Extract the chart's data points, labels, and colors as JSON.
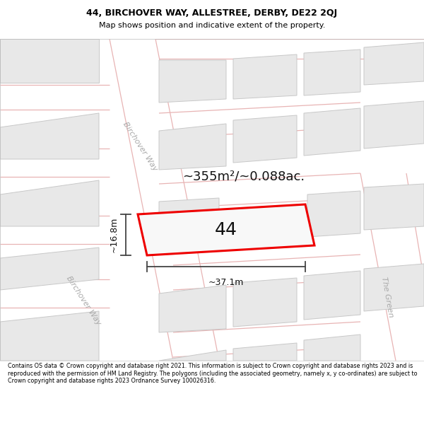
{
  "title_line1": "44, BIRCHOVER WAY, ALLESTREE, DERBY, DE22 2QJ",
  "title_line2": "Map shows position and indicative extent of the property.",
  "footer_text": "Contains OS data © Crown copyright and database right 2021. This information is subject to Crown copyright and database rights 2023 and is reproduced with the permission of HM Land Registry. The polygons (including the associated geometry, namely x, y co-ordinates) are subject to Crown copyright and database rights 2023 Ordnance Survey 100026316.",
  "map_bg": "#f9f6f4",
  "title_bg": "#ffffff",
  "road_color": "#e8b4b4",
  "road_lw": 0.9,
  "building_fill": "#e8e8e8",
  "building_edge": "#c8c8c8",
  "building_lw": 0.7,
  "highlight_color": "#ee0000",
  "highlight_lw": 2.2,
  "measure_color": "#444444",
  "area_text": "~355m²/~0.088ac.",
  "label_44": "44",
  "label_width": "~37.1m",
  "label_height": "~16.8m",
  "road_label_color": "#aaaaaa",
  "road_label1": "Birchover Way",
  "road_label2": "Birchover Way",
  "road_label3": "The Green",
  "title_fontsize": 9,
  "subtitle_fontsize": 8,
  "footer_fontsize": 5.8,
  "area_fontsize": 13,
  "label_fontsize": 18,
  "measure_fontsize": 9,
  "road_label_fontsize": 8
}
